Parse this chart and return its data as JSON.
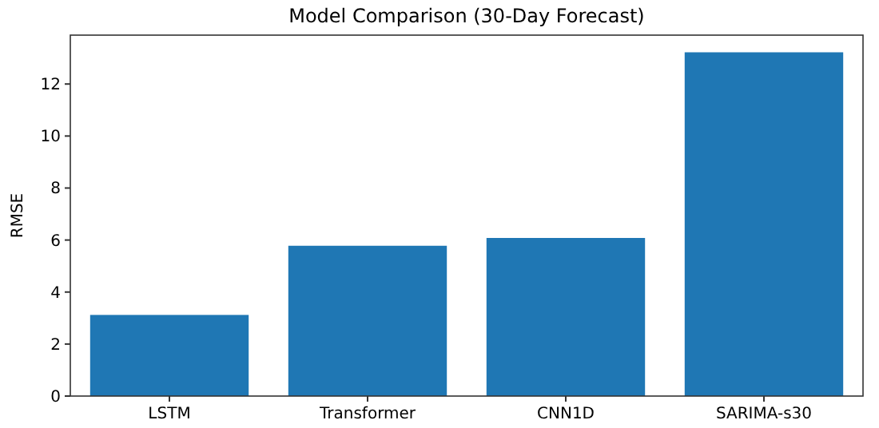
{
  "chart_data": {
    "type": "bar",
    "title": "Model Comparison (30-Day Forecast)",
    "ylabel": "RMSE",
    "categories": [
      "LSTM",
      "Transformer",
      "CNN1D",
      "SARIMA-s30"
    ],
    "values": [
      3.12,
      5.78,
      6.08,
      13.22
    ],
    "color": "#1f77b4",
    "ylim": [
      0,
      13.88
    ],
    "yticks": [
      0,
      2,
      4,
      6,
      8,
      10,
      12
    ],
    "grid": false
  }
}
